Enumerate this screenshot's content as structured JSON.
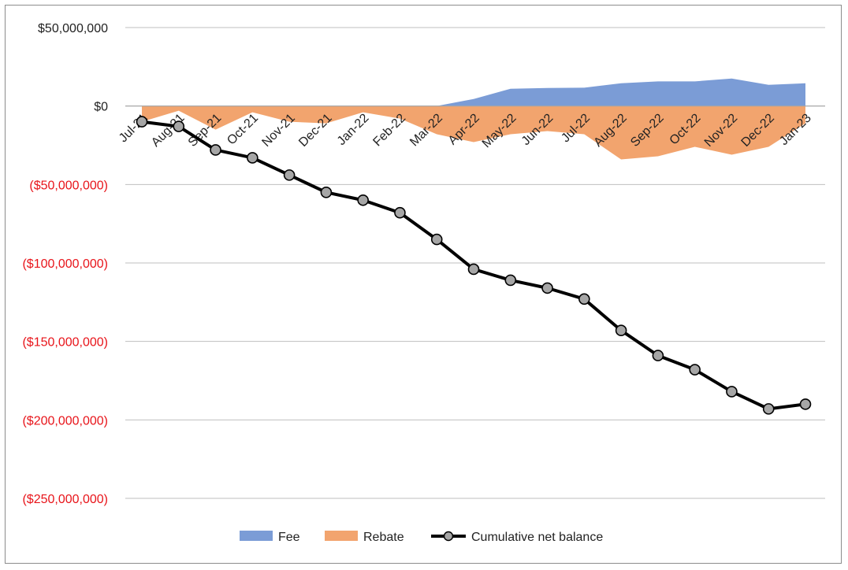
{
  "chart_data": {
    "type": "area",
    "categories": [
      "Jul-21",
      "Aug-21",
      "Sep-21",
      "Oct-21",
      "Nov-21",
      "Dec-21",
      "Jan-22",
      "Feb-22",
      "Mar-22",
      "Apr-22",
      "May-22",
      "Jun-22",
      "Jul-22",
      "Aug-22",
      "Sep-22",
      "Oct-22",
      "Nov-22",
      "Dec-22",
      "Jan-23"
    ],
    "y_tick_labels": [
      "$50,000,000",
      "$0",
      "($50,000,000)",
      "($100,000,000)",
      "($150,000,000)",
      "($200,000,000)",
      "($250,000,000)"
    ],
    "y_ticks": [
      50000000,
      0,
      -50000000,
      -100000000,
      -150000000,
      -200000000,
      -250000000
    ],
    "ylim": [
      -250000000,
      50000000
    ],
    "grid": true,
    "legend_position": "bottom",
    "series": [
      {
        "name": "Fee",
        "type": "area",
        "color": "#7b9cd6",
        "values": [
          0,
          0,
          0,
          0,
          0,
          0,
          0,
          0,
          0,
          4500000,
          11000000,
          11500000,
          11700000,
          14500000,
          15700000,
          15700000,
          17500000,
          13500000,
          14500000
        ]
      },
      {
        "name": "Rebate",
        "type": "area",
        "color": "#f2a46e",
        "values": [
          -10000000,
          -3000000,
          -15000000,
          -4000000,
          -10000000,
          -11000000,
          -4000000,
          -8000000,
          -18000000,
          -23000000,
          -18000000,
          -16000000,
          -18000000,
          -34000000,
          -32000000,
          -26000000,
          -31000000,
          -26000000,
          -11000000
        ]
      },
      {
        "name": "Cumulative net balance",
        "type": "line",
        "color": "#000000",
        "values": [
          -10000000,
          -13000000,
          -28000000,
          -33000000,
          -44000000,
          -55000000,
          -60000000,
          -68000000,
          -85000000,
          -104000000,
          -111000000,
          -116000000,
          -123000000,
          -143000000,
          -159000000,
          -168000000,
          -182000000,
          -193000000,
          -190000000
        ]
      }
    ],
    "colors": {
      "negative_tick": "#e8141a",
      "positive_tick": "#222222",
      "grid": "#bfbfbf",
      "marker_fill": "#a6a6a6"
    }
  }
}
